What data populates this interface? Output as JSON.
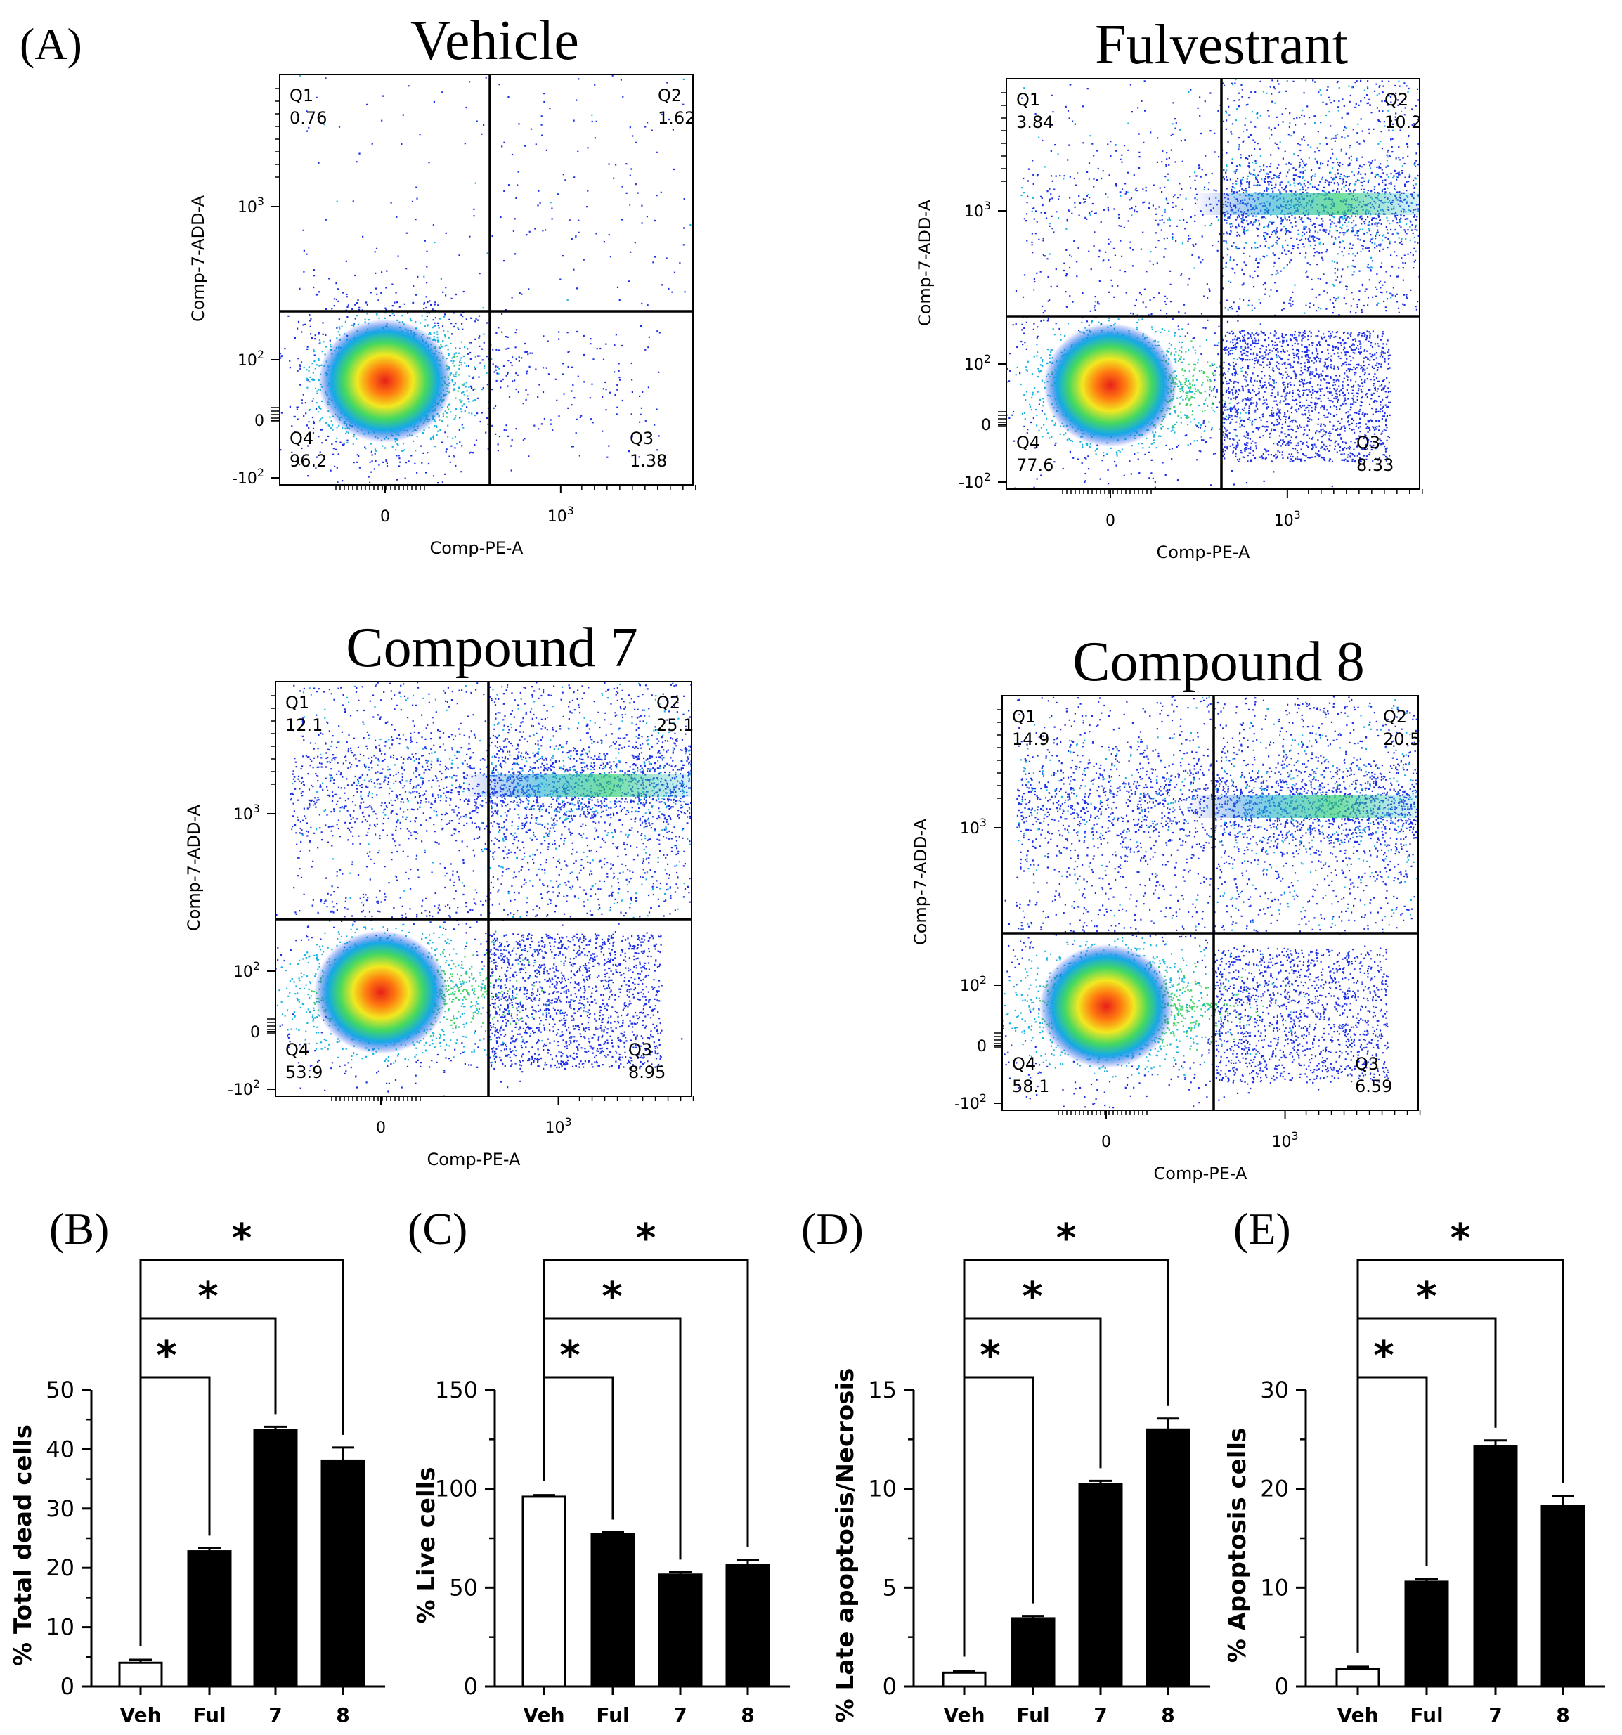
{
  "figure": {
    "panel_labels": [
      "(A)",
      "(B)",
      "(C)",
      "(D)",
      "(E)"
    ]
  },
  "chart_data": [
    {
      "type": "scatter",
      "panel": "A",
      "title": "Vehicle",
      "xlabel": "Comp-PE-A",
      "ylabel": "Comp-7-ADD-A",
      "x_ticks": [
        "0",
        "10^3"
      ],
      "y_ticks": [
        "-10^2",
        "0",
        "10^2",
        "10^3"
      ],
      "quadrants": [
        {
          "name": "Q1",
          "value": "0.76"
        },
        {
          "name": "Q2",
          "value": "1.62"
        },
        {
          "name": "Q3",
          "value": "1.38"
        },
        {
          "name": "Q4",
          "value": "96.2"
        }
      ]
    },
    {
      "type": "scatter",
      "panel": "A",
      "title": "Fulvestrant",
      "xlabel": "Comp-PE-A",
      "ylabel": "Comp-7-ADD-A",
      "x_ticks": [
        "0",
        "10^3"
      ],
      "y_ticks": [
        "-10^2",
        "0",
        "10^2",
        "10^3"
      ],
      "quadrants": [
        {
          "name": "Q1",
          "value": "3.84"
        },
        {
          "name": "Q2",
          "value": "10.2"
        },
        {
          "name": "Q3",
          "value": "8.33"
        },
        {
          "name": "Q4",
          "value": "77.6"
        }
      ]
    },
    {
      "type": "scatter",
      "panel": "A",
      "title": "Compound 7",
      "xlabel": "Comp-PE-A",
      "ylabel": "Comp-7-ADD-A",
      "x_ticks": [
        "0",
        "10^3"
      ],
      "y_ticks": [
        "-10^2",
        "0",
        "10^2",
        "10^3"
      ],
      "quadrants": [
        {
          "name": "Q1",
          "value": "12.1"
        },
        {
          "name": "Q2",
          "value": "25.1"
        },
        {
          "name": "Q3",
          "value": "8.95"
        },
        {
          "name": "Q4",
          "value": "53.9"
        }
      ]
    },
    {
      "type": "scatter",
      "panel": "A",
      "title": "Compound 8",
      "xlabel": "Comp-PE-A",
      "ylabel": "Comp-7-ADD-A",
      "x_ticks": [
        "0",
        "10^3"
      ],
      "y_ticks": [
        "-10^2",
        "0",
        "10^2",
        "10^3"
      ],
      "quadrants": [
        {
          "name": "Q1",
          "value": "14.9"
        },
        {
          "name": "Q2",
          "value": "20.5"
        },
        {
          "name": "Q3",
          "value": "6.59"
        },
        {
          "name": "Q4",
          "value": "58.1"
        }
      ]
    },
    {
      "type": "bar",
      "panel": "B",
      "title": "",
      "xlabel": "",
      "ylabel": "% Total dead cells",
      "categories": [
        "Veh",
        "Ful",
        "7",
        "8"
      ],
      "values": [
        4,
        22.8,
        43.2,
        38.1
      ],
      "errors": [
        0.5,
        0.5,
        0.6,
        2.2
      ],
      "ylim": [
        0,
        50
      ],
      "yticks": [
        0,
        10,
        20,
        30,
        40,
        50
      ],
      "significance": [
        {
          "from": "Veh",
          "to": "Ful",
          "label": "*"
        },
        {
          "from": "Veh",
          "to": "7",
          "label": "*"
        },
        {
          "from": "Veh",
          "to": "8",
          "label": "*"
        }
      ]
    },
    {
      "type": "bar",
      "panel": "C",
      "title": "",
      "xlabel": "",
      "ylabel": "% Live cells",
      "categories": [
        "Veh",
        "Ful",
        "7",
        "8"
      ],
      "values": [
        96,
        77.2,
        56.6,
        61.6
      ],
      "errors": [
        0.8,
        0.8,
        1.2,
        2.5
      ],
      "ylim": [
        0,
        150
      ],
      "yticks": [
        0,
        50,
        100,
        150
      ],
      "significance": [
        {
          "from": "Veh",
          "to": "Ful",
          "label": "*"
        },
        {
          "from": "Veh",
          "to": "7",
          "label": "*"
        },
        {
          "from": "Veh",
          "to": "8",
          "label": "*"
        }
      ]
    },
    {
      "type": "bar",
      "panel": "D",
      "title": "",
      "xlabel": "",
      "ylabel": "% Late apoptosis/Necrosis",
      "categories": [
        "Veh",
        "Ful",
        "7",
        "8"
      ],
      "values": [
        0.7,
        3.45,
        10.25,
        13.0
      ],
      "errors": [
        0.1,
        0.12,
        0.15,
        0.55
      ],
      "ylim": [
        0,
        15
      ],
      "yticks": [
        0,
        5,
        10,
        15
      ],
      "significance": [
        {
          "from": "Veh",
          "to": "Ful",
          "label": "*"
        },
        {
          "from": "Veh",
          "to": "7",
          "label": "*"
        },
        {
          "from": "Veh",
          "to": "8",
          "label": "*"
        }
      ]
    },
    {
      "type": "bar",
      "panel": "E",
      "title": "",
      "xlabel": "",
      "ylabel": "% Apoptosis cells",
      "categories": [
        "Veh",
        "Ful",
        "7",
        "8"
      ],
      "values": [
        1.8,
        10.6,
        24.3,
        18.3
      ],
      "errors": [
        0.2,
        0.3,
        0.6,
        1.0
      ],
      "ylim": [
        0,
        30
      ],
      "yticks": [
        0,
        10,
        20,
        30
      ],
      "significance": [
        {
          "from": "Veh",
          "to": "Ful",
          "label": "*"
        },
        {
          "from": "Veh",
          "to": "7",
          "label": "*"
        },
        {
          "from": "Veh",
          "to": "8",
          "label": "*"
        }
      ]
    }
  ]
}
